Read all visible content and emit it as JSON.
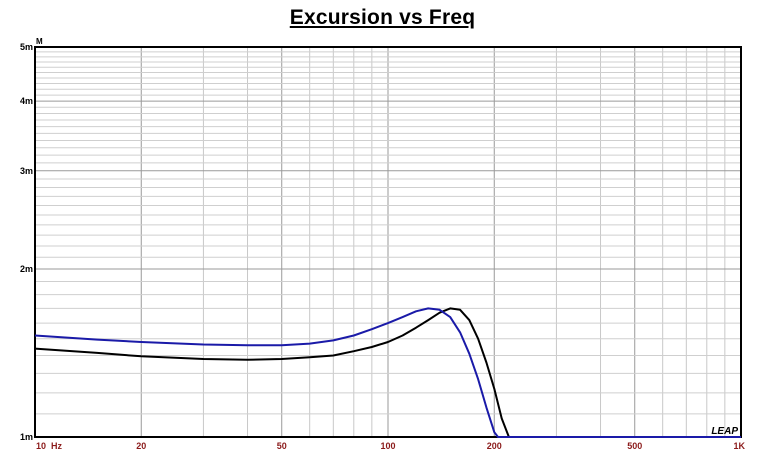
{
  "chart_data": {
    "type": "line",
    "title": "Excursion vs Freq",
    "unit_label": "M",
    "xscale": "log",
    "yscale": "log",
    "xlim": [
      10,
      1000
    ],
    "ylim": [
      0.001,
      0.005
    ],
    "grid": true,
    "x_ticks": [
      {
        "value": 10,
        "label": "10  Hz"
      },
      {
        "value": 20,
        "label": "20"
      },
      {
        "value": 50,
        "label": "50"
      },
      {
        "value": 100,
        "label": "100"
      },
      {
        "value": 200,
        "label": "200"
      },
      {
        "value": 500,
        "label": "500"
      },
      {
        "value": 1000,
        "label": "1K"
      }
    ],
    "y_ticks": [
      {
        "value": 0.001,
        "label": "1m"
      },
      {
        "value": 0.002,
        "label": "2m"
      },
      {
        "value": 0.003,
        "label": "3m"
      },
      {
        "value": 0.004,
        "label": "4m"
      },
      {
        "value": 0.005,
        "label": "5m"
      }
    ],
    "series": [
      {
        "color": "#000000",
        "x": [
          10,
          15,
          20,
          30,
          40,
          50,
          60,
          70,
          80,
          90,
          100,
          110,
          120,
          130,
          140,
          150,
          160,
          170,
          180,
          190,
          200,
          210,
          220,
          1000
        ],
        "y": [
          0.00144,
          0.001415,
          0.001395,
          0.00138,
          0.001375,
          0.00138,
          0.00139,
          0.0014,
          0.001425,
          0.00145,
          0.00148,
          0.00152,
          0.00157,
          0.00162,
          0.00167,
          0.0017,
          0.00169,
          0.00162,
          0.0015,
          0.00136,
          0.00122,
          0.00108,
          0.001,
          0.001
        ]
      },
      {
        "color": "#1a1aa8",
        "x": [
          10,
          15,
          20,
          30,
          40,
          50,
          60,
          70,
          80,
          90,
          100,
          110,
          120,
          130,
          140,
          150,
          160,
          170,
          180,
          190,
          200,
          205,
          1000
        ],
        "y": [
          0.00152,
          0.001495,
          0.00148,
          0.001465,
          0.00146,
          0.00146,
          0.00147,
          0.00149,
          0.00152,
          0.00156,
          0.0016,
          0.00164,
          0.00168,
          0.0017,
          0.00169,
          0.00164,
          0.00154,
          0.00141,
          0.00127,
          0.00113,
          0.00102,
          0.001,
          0.001
        ]
      }
    ]
  },
  "logo": {
    "text": "LEAP"
  }
}
